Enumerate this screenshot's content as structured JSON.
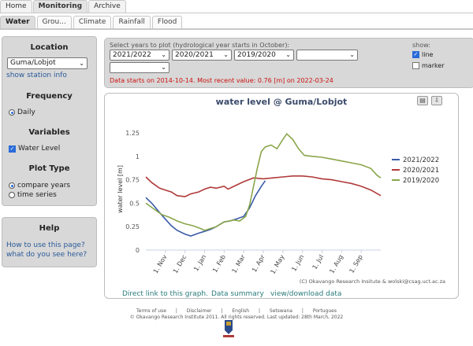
{
  "top_tabs": [
    "Home",
    "Monitoring",
    "Archive"
  ],
  "sub_tabs": [
    "Water",
    "Grou...",
    "Climate",
    "Rainfall",
    "Flood"
  ],
  "sidebar": {
    "location_title": "Location",
    "location_value": "Guma/Lobjot",
    "show_station_info": "show station info",
    "frequency_title": "Frequency",
    "frequency_option": "Daily",
    "variables_title": "Variables",
    "variable_option": "Water Level",
    "plot_type_title": "Plot Type",
    "plot_type_options": [
      "compare years",
      "time series"
    ],
    "help_title": "Help",
    "help_links": [
      "How to use this page?",
      "what do you see here?"
    ]
  },
  "selection": {
    "title": "Select years to plot (hydrological year starts in October):",
    "years": [
      "2021/2022",
      "2020/2021",
      "2019/2020",
      "",
      ""
    ],
    "show_label": "show:",
    "show_line": "line",
    "show_marker": "marker",
    "data_info": "Data starts on 2014-10-14. Most recent value: 0.76 [m] on 2022-03-24"
  },
  "chart_links": [
    "Direct link to this graph.",
    "Data summary",
    "view/download data"
  ],
  "footer": {
    "links": [
      "Terms of use",
      "|",
      "Disclaimer",
      "|",
      "English",
      "|",
      "Setswana",
      "|",
      "Portugues"
    ],
    "copyright": "© Okavango Research Institute 2011.  All rights reserved. Last updated: 28th March, 2022"
  },
  "colors": {
    "s2122": "#3a5ba8",
    "s2021": "#b03a3a",
    "s1920": "#8aa64a",
    "accent": "#2a6bd8",
    "error": "#cc1111"
  },
  "chart_data": {
    "type": "line",
    "title": "water level @ Guma/Lobjot",
    "ylabel": "water level [m]",
    "credit": "(C) Okavango Research Insitute & wolski@csag.uct.ac.za",
    "ylim": [
      0,
      1.3
    ],
    "yticks": [
      0,
      0.25,
      0.5,
      0.75,
      1,
      1.25
    ],
    "xlim": [
      0,
      12
    ],
    "xticks": [
      {
        "x": 1,
        "label": "1. Nov"
      },
      {
        "x": 2,
        "label": "1. Dec"
      },
      {
        "x": 3,
        "label": "1. Jan"
      },
      {
        "x": 4,
        "label": "1. Feb"
      },
      {
        "x": 5,
        "label": "1. Mar"
      },
      {
        "x": 6,
        "label": "1. Apr"
      },
      {
        "x": 7,
        "label": "1. May"
      },
      {
        "x": 8,
        "label": "1. Jun"
      },
      {
        "x": 9,
        "label": "1. Jul"
      },
      {
        "x": 10,
        "label": "1. Aug"
      },
      {
        "x": 11,
        "label": "1. Sep"
      }
    ],
    "series": [
      {
        "name": "2021/2022",
        "color": "#3a5ba8",
        "points": [
          [
            0,
            0.56
          ],
          [
            0.3,
            0.5
          ],
          [
            0.7,
            0.4
          ],
          [
            1.0,
            0.33
          ],
          [
            1.3,
            0.26
          ],
          [
            1.6,
            0.21
          ],
          [
            2.0,
            0.17
          ],
          [
            2.3,
            0.15
          ],
          [
            2.7,
            0.18
          ],
          [
            3.0,
            0.2
          ],
          [
            3.3,
            0.22
          ],
          [
            3.6,
            0.25
          ],
          [
            4.0,
            0.3
          ],
          [
            4.3,
            0.31
          ],
          [
            4.6,
            0.33
          ],
          [
            5.0,
            0.36
          ],
          [
            5.3,
            0.45
          ],
          [
            5.6,
            0.58
          ],
          [
            5.9,
            0.68
          ],
          [
            6.1,
            0.74
          ]
        ]
      },
      {
        "name": "2020/2021",
        "color": "#b03a3a",
        "points": [
          [
            0,
            0.78
          ],
          [
            0.3,
            0.72
          ],
          [
            0.7,
            0.66
          ],
          [
            1.0,
            0.64
          ],
          [
            1.3,
            0.62
          ],
          [
            1.6,
            0.58
          ],
          [
            2.0,
            0.57
          ],
          [
            2.3,
            0.6
          ],
          [
            2.7,
            0.62
          ],
          [
            3.0,
            0.65
          ],
          [
            3.3,
            0.67
          ],
          [
            3.6,
            0.66
          ],
          [
            4.0,
            0.68
          ],
          [
            4.2,
            0.65
          ],
          [
            4.5,
            0.68
          ],
          [
            5.0,
            0.73
          ],
          [
            5.5,
            0.77
          ],
          [
            6.0,
            0.76
          ],
          [
            6.5,
            0.77
          ],
          [
            7.0,
            0.78
          ],
          [
            7.5,
            0.79
          ],
          [
            8.0,
            0.79
          ],
          [
            8.5,
            0.78
          ],
          [
            9.0,
            0.76
          ],
          [
            9.5,
            0.75
          ],
          [
            10.0,
            0.73
          ],
          [
            10.5,
            0.71
          ],
          [
            11.0,
            0.68
          ],
          [
            11.5,
            0.64
          ],
          [
            12.0,
            0.58
          ]
        ]
      },
      {
        "name": "2019/2020",
        "color": "#8aa64a",
        "points": [
          [
            0,
            0.5
          ],
          [
            0.4,
            0.44
          ],
          [
            0.8,
            0.38
          ],
          [
            1.2,
            0.35
          ],
          [
            1.6,
            0.31
          ],
          [
            2.0,
            0.28
          ],
          [
            2.4,
            0.26
          ],
          [
            2.8,
            0.23
          ],
          [
            3.0,
            0.21
          ],
          [
            3.3,
            0.23
          ],
          [
            3.6,
            0.25
          ],
          [
            4.0,
            0.3
          ],
          [
            4.5,
            0.32
          ],
          [
            4.8,
            0.31
          ],
          [
            5.1,
            0.36
          ],
          [
            5.3,
            0.48
          ],
          [
            5.5,
            0.68
          ],
          [
            5.7,
            0.88
          ],
          [
            5.9,
            1.05
          ],
          [
            6.1,
            1.1
          ],
          [
            6.4,
            1.12
          ],
          [
            6.7,
            1.08
          ],
          [
            7.0,
            1.18
          ],
          [
            7.2,
            1.24
          ],
          [
            7.5,
            1.18
          ],
          [
            7.8,
            1.08
          ],
          [
            8.1,
            1.01
          ],
          [
            8.5,
            1.0
          ],
          [
            9.0,
            0.99
          ],
          [
            9.5,
            0.97
          ],
          [
            10.0,
            0.95
          ],
          [
            10.5,
            0.93
          ],
          [
            11.0,
            0.91
          ],
          [
            11.5,
            0.87
          ],
          [
            11.8,
            0.8
          ],
          [
            12.0,
            0.77
          ]
        ]
      }
    ]
  }
}
